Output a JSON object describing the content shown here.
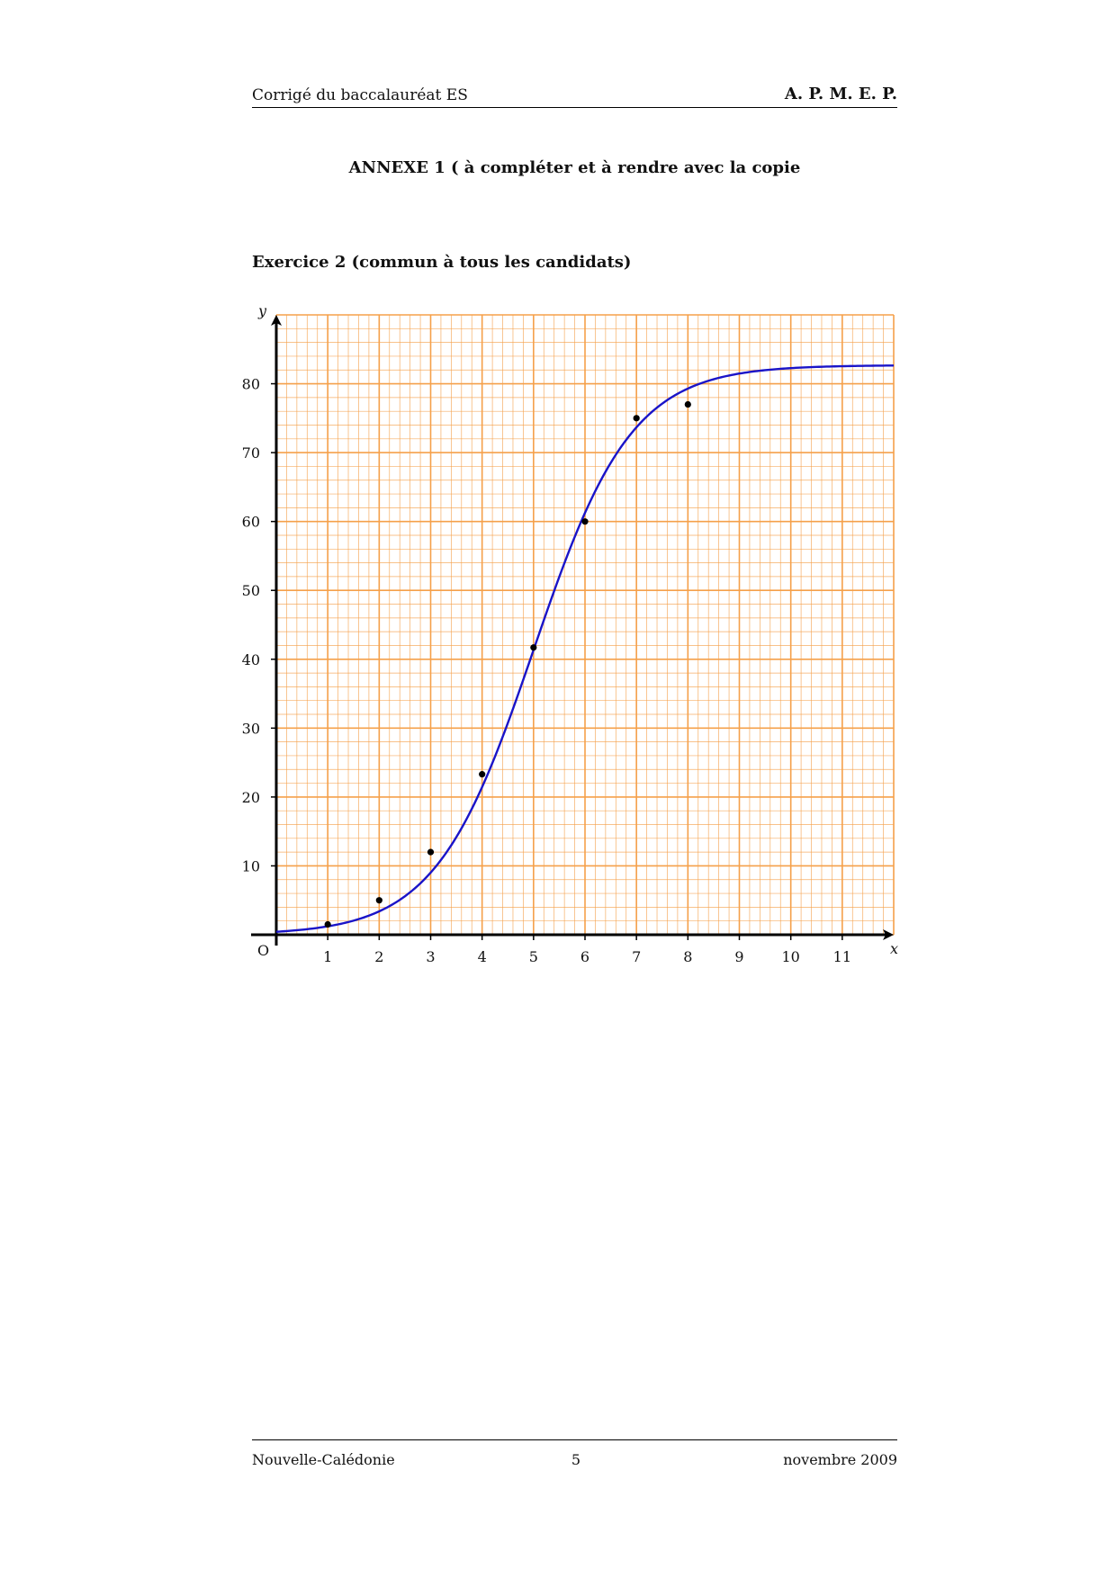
{
  "header": {
    "left": "Corrigé du baccalauréat ES",
    "right": "A. P. M. E. P."
  },
  "annex_title": "ANNEXE 1 ( à compléter et à rendre avec la copie",
  "exercise_title": "Exercice 2 (commun à tous les candidats)",
  "chart_data": {
    "type": "scatter",
    "xlabel": "x",
    "ylabel": "y",
    "origin_label": "O",
    "xlim": [
      0,
      12
    ],
    "ylim": [
      0,
      90
    ],
    "x_ticks": [
      1,
      2,
      3,
      4,
      5,
      6,
      7,
      8,
      9,
      10,
      11
    ],
    "y_ticks": [
      10,
      20,
      30,
      40,
      50,
      60,
      70,
      80
    ],
    "grid": true,
    "grid_color": "#f5a04a",
    "curve_color": "#1a14c8",
    "point_color": "#000000",
    "points": [
      {
        "x": 1,
        "y": 1.5
      },
      {
        "x": 2,
        "y": 5
      },
      {
        "x": 3,
        "y": 12
      },
      {
        "x": 4,
        "y": 23.3
      },
      {
        "x": 5,
        "y": 41.7
      },
      {
        "x": 6,
        "y": 60
      },
      {
        "x": 7,
        "y": 75
      },
      {
        "x": 8,
        "y": 77
      }
    ],
    "curve": {
      "type": "logistic",
      "asymptote": 82.7,
      "x_mid": 5,
      "rate": 1.05
    }
  },
  "footer": {
    "left": "Nouvelle-Calédonie",
    "center": "5",
    "right": "novembre 2009"
  }
}
